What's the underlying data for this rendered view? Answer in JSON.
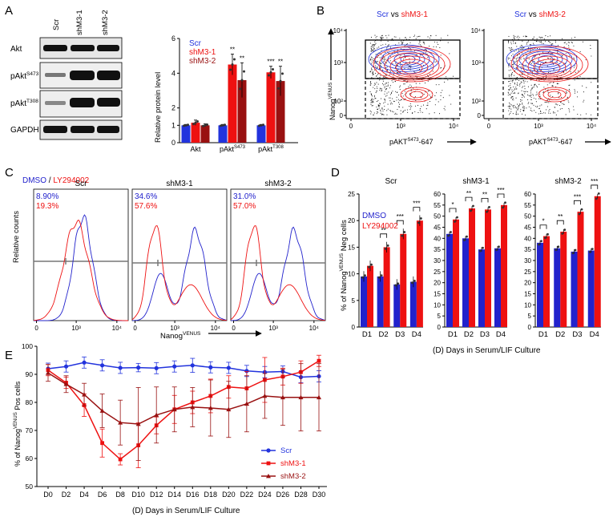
{
  "panel_labels": {
    "A": "A",
    "B": "B",
    "C": "C",
    "D": "D",
    "E": "E"
  },
  "colors": {
    "scr": "#2233dd",
    "shm31": "#ee1111",
    "shm32": "#991111",
    "dmso": "#2222cc",
    "ly": "#ee1111",
    "grey": "#888888"
  },
  "panelA": {
    "lanes": [
      "Scr",
      "shM3-1",
      "shM3-2"
    ],
    "blots": [
      "Akt",
      "pAkt",
      "pAkt",
      "GAPDH"
    ],
    "blot_sup": [
      "",
      "S473",
      "T308",
      ""
    ],
    "ylabel": "Relative protein level",
    "legend": [
      "Scr",
      "shM3-1",
      "shM3-2"
    ]
  },
  "panelB": {
    "titles": [
      {
        "a": "Scr",
        "vs": " vs ",
        "b": "shM3-1"
      },
      {
        "a": "Scr",
        "vs": " vs ",
        "b": "shM3-2"
      }
    ],
    "ylabel": "Nanog",
    "ylabel_sup": "VENUS",
    "xlabel": "pAKT",
    "xlabel_sup": "S473",
    "xlabel_tail": "-647",
    "yticks": [
      "10⁴",
      "10³",
      "10²",
      "0"
    ],
    "xticks": [
      "0",
      "10³",
      "10⁴"
    ]
  },
  "panelC": {
    "legend_a": "DMSO",
    "legend_sep": " / ",
    "legend_b": "LY294002",
    "titles": [
      "Scr",
      "shM3-1",
      "shM3-2"
    ],
    "pct_dmso": [
      "8.90%",
      "34.6%",
      "31.0%"
    ],
    "pct_ly": [
      "19.3%",
      "57.6%",
      "57.0%"
    ],
    "ylabel": "Relative counts",
    "xlabel": "Nanog",
    "xlabel_sup": "VENUS",
    "xticks": [
      "0",
      "10³",
      "10⁴"
    ]
  },
  "panelD": {
    "titles": [
      "Scr",
      "shM3-1",
      "shM3-2"
    ],
    "legend": [
      "DMSO",
      "LY294002"
    ],
    "ylabel_pre": "% of Nanog",
    "ylabel_sup": "VENUS",
    "ylabel_post": " Neg cells",
    "xlabel": "(D) Days in Serum/LIF Culture",
    "days": [
      "D1",
      "D2",
      "D3",
      "D4"
    ],
    "sig": [
      [
        "",
        "**",
        "***",
        "***"
      ],
      [
        "*",
        "**",
        "**",
        "***"
      ],
      [
        "*",
        "**",
        "***",
        "***"
      ]
    ]
  },
  "panelE": {
    "ylabel_pre": "% of Nanog",
    "ylabel_sup": "VENUS",
    "ylabel_post": " Pos cells",
    "xlabel": "(D) Days in Serum/LIF Culture",
    "legend": [
      "Scr",
      "shM3-1",
      "shM3-2"
    ]
  },
  "chart_data": [
    {
      "id": "A-bar",
      "type": "bar",
      "categories": [
        "Akt",
        "pAkt S473",
        "pAkt T308"
      ],
      "series": [
        {
          "name": "Scr",
          "values": [
            1,
            1,
            1
          ],
          "err": [
            0.05,
            0.05,
            0.05
          ]
        },
        {
          "name": "shM3-1",
          "values": [
            1.15,
            4.5,
            4.05
          ],
          "err": [
            0.15,
            0.6,
            0.35
          ]
        },
        {
          "name": "shM3-2",
          "values": [
            1.0,
            3.6,
            3.55
          ],
          "err": [
            0.08,
            1.0,
            0.85
          ]
        }
      ],
      "significance": [
        [
          "",
          "**",
          "***"
        ],
        [
          "",
          "**",
          "**"
        ]
      ],
      "ylim": [
        0,
        6
      ],
      "yticks": [
        0,
        1,
        2,
        4,
        6
      ],
      "ylabel": "Relative protein level"
    },
    {
      "id": "D-bar",
      "type": "bar",
      "groups": [
        "Scr",
        "shM3-1",
        "shM3-2"
      ],
      "categories": [
        "D1",
        "D2",
        "D3",
        "D4"
      ],
      "series": [
        {
          "name": "DMSO",
          "values": [
            [
              9.5,
              9.5,
              8.0,
              8.5
            ],
            [
              42,
              40,
              35,
              35.5
            ],
            [
              38,
              35.5,
              34,
              34.5
            ]
          ]
        },
        {
          "name": "LY294002",
          "values": [
            [
              11.5,
              15,
              17.5,
              20
            ],
            [
              48.5,
              53.5,
              53,
              55
            ],
            [
              41,
              43,
              52,
              59
            ]
          ]
        }
      ],
      "ylim_scr": [
        0,
        25
      ],
      "yticks_scr": [
        0,
        5,
        10,
        15,
        20,
        25
      ],
      "ylim": [
        0,
        60
      ],
      "yticks": [
        0,
        5,
        10,
        15,
        20,
        25,
        30,
        35,
        40,
        45,
        50,
        55,
        60
      ],
      "ylabel": "% of NanogVENUS Neg cells"
    },
    {
      "id": "E-line",
      "type": "line",
      "x": [
        "D0",
        "D2",
        "D4",
        "D6",
        "D8",
        "D10",
        "D12",
        "D14",
        "D16",
        "D18",
        "D20",
        "D22",
        "D24",
        "D26",
        "D28",
        "D30"
      ],
      "series": [
        {
          "name": "Scr",
          "values": [
            92,
            92.8,
            94.2,
            93.2,
            92.3,
            92.4,
            92.2,
            92.8,
            93.2,
            92.5,
            92.3,
            91.2,
            90.8,
            91,
            89,
            89.3
          ],
          "err": [
            2,
            2,
            2,
            2,
            2,
            1.5,
            2,
            2,
            2.5,
            2,
            2,
            2,
            2,
            2,
            2,
            2
          ]
        },
        {
          "name": "shM3-1",
          "values": [
            91.5,
            87,
            79,
            65.5,
            59.7,
            64.7,
            71.8,
            77.5,
            80,
            82.3,
            85.5,
            85,
            88,
            89.2,
            90.8,
            94.8
          ],
          "err": [
            2,
            2,
            4,
            5,
            2,
            8,
            3,
            5,
            4,
            6,
            4,
            6,
            8,
            3,
            4,
            2
          ]
        },
        {
          "name": "shM3-2",
          "values": [
            90.5,
            86.5,
            82.8,
            77,
            72.8,
            72.3,
            75.5,
            77.5,
            78.3,
            78,
            77.5,
            79.5,
            82.3,
            81.8,
            81.8,
            81.8
          ],
          "err": [
            3,
            3,
            4,
            6,
            8,
            13,
            10,
            8,
            7,
            10,
            10,
            10,
            8,
            10,
            12,
            12
          ]
        }
      ],
      "ylim": [
        50,
        100
      ],
      "yticks": [
        50,
        60,
        70,
        80,
        90,
        100
      ],
      "xlabel": "(D) Days in Serum/LIF Culture",
      "ylabel": "% of NanogVENUS Pos cells",
      "legend_position": "bottom-right"
    }
  ]
}
